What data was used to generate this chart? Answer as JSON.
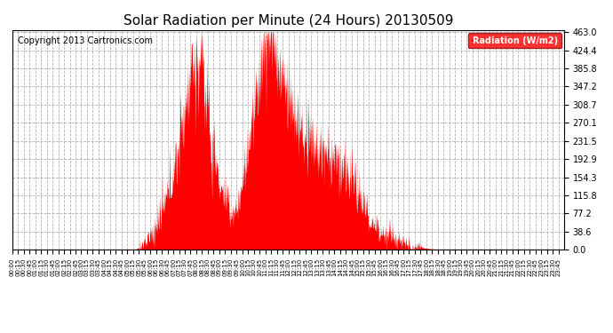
{
  "title": "Solar Radiation per Minute (24 Hours) 20130509",
  "copyright_text": "Copyright 2013 Cartronics.com",
  "legend_label": "Radiation (W/m2)",
  "y_ticks": [
    0.0,
    38.6,
    77.2,
    115.8,
    154.3,
    192.9,
    231.5,
    270.1,
    308.7,
    347.2,
    385.8,
    424.4,
    463.0
  ],
  "y_max": 463.0,
  "y_min": 0.0,
  "fill_color": "#FF0000",
  "baseline_color": "#FF0000",
  "grid_color": "#AAAAAA",
  "background_color": "#FFFFFF",
  "title_fontsize": 11,
  "copyright_fontsize": 7,
  "total_minutes": 1440,
  "seed": 12345
}
